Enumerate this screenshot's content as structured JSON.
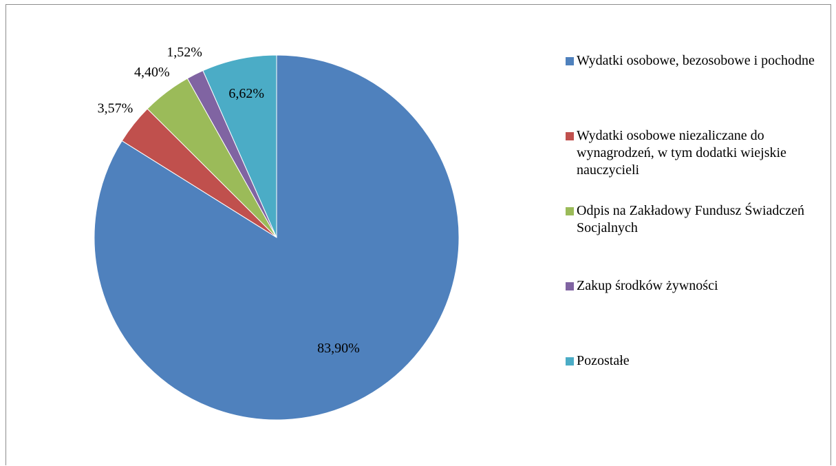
{
  "chart_data": {
    "type": "pie",
    "categories": [
      "Wydatki osobowe, bezosobowe i pochodne",
      "Wydatki osobowe niezaliczane do wynagrodzeń, w tym dodatki wiejskie nauczycieli",
      "Odpis na Zakładowy Fundusz Świadczeń Socjalnych",
      "Zakup środków żywności",
      "Pozostałe"
    ],
    "values": [
      83.9,
      3.57,
      4.4,
      1.52,
      6.62
    ],
    "value_labels": [
      "83,90%",
      "3,57%",
      "4,40%",
      "1,52%",
      "6,62%"
    ],
    "colors": [
      "#4f81bd",
      "#c0504d",
      "#9bbb59",
      "#8064a2",
      "#4bacc6"
    ],
    "legend": "right"
  }
}
